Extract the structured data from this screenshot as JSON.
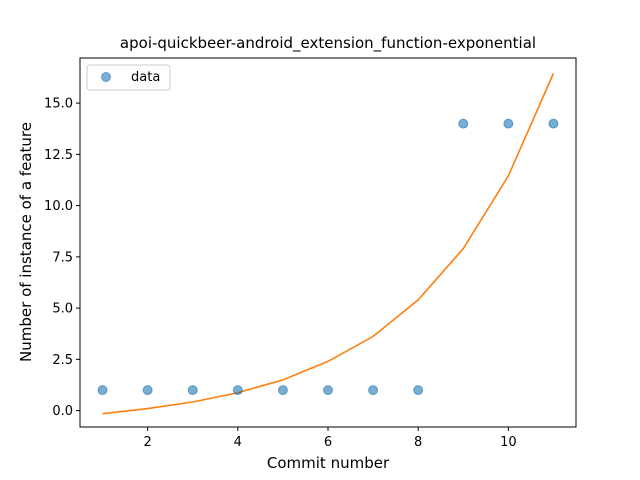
{
  "chart_data": {
    "type": "scatter",
    "title": "apoi-quickbeer-android_extension_function-exponential",
    "xlabel": "Commit number",
    "ylabel": "Number of instance of a feature",
    "xlim": [
      0.5,
      11.5
    ],
    "ylim": [
      -0.8,
      17.2
    ],
    "xticks": [
      2,
      4,
      6,
      8,
      10
    ],
    "xtick_labels": [
      "2",
      "4",
      "6",
      "8",
      "10"
    ],
    "yticks": [
      0,
      2.5,
      5,
      7.5,
      10,
      12.5,
      15
    ],
    "ytick_labels": [
      "0.0",
      "2.5",
      "5.0",
      "7.5",
      "10.0",
      "12.5",
      "15.0"
    ],
    "grid": false,
    "legend_position": "upper-left",
    "series": [
      {
        "name": "data",
        "kind": "scatter",
        "color": "#1f77b4",
        "x": [
          1,
          2,
          3,
          4,
          5,
          6,
          7,
          8,
          9,
          10,
          11
        ],
        "y": [
          1,
          1,
          1,
          1,
          1,
          1,
          1,
          1,
          14,
          14,
          14
        ]
      },
      {
        "kind": "line",
        "color": "#ff7f0e",
        "x": [
          1,
          2,
          3,
          4,
          5,
          6,
          7,
          8,
          9,
          10,
          11
        ],
        "y": [
          -0.15,
          0.1,
          0.42,
          0.87,
          1.5,
          2.4,
          3.62,
          5.4,
          7.9,
          11.45,
          16.45
        ]
      }
    ]
  }
}
